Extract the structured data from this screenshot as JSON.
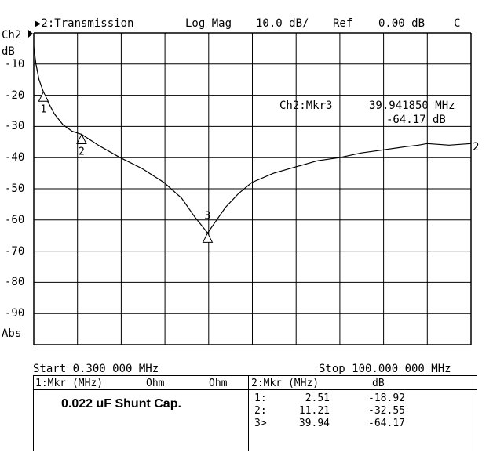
{
  "header": {
    "channel_indicator": "▶2:Transmission",
    "format": "Log Mag",
    "scale": "10.0 dB/",
    "ref_label": "Ref",
    "ref_value": "0.00 dB",
    "cal_flag": "C"
  },
  "axis": {
    "channel_label": "Ch2",
    "unit_label": "dB",
    "abs_label": "Abs",
    "trace_end_label": "2",
    "y_ticks": [
      "-10",
      "-20",
      "-30",
      "-40",
      "-50",
      "-60",
      "-70",
      "-80",
      "-90"
    ]
  },
  "active_marker": {
    "label": "Ch2:Mkr3",
    "freq": "39.941850 MHz",
    "value": "-64.17 dB"
  },
  "sweep": {
    "start": "Start 0.300 000 MHz",
    "stop": "Stop 100.000 000 MHz"
  },
  "bottom_table": {
    "left_header": {
      "col1": "1:Mkr (MHz)",
      "col2": "Ohm",
      "col3": "Ohm"
    },
    "caption": "0.022 uF Shunt Cap.",
    "right_header": {
      "col1": "2:Mkr (MHz)",
      "col2": "dB"
    },
    "rows": [
      {
        "id": "1:",
        "freq": "2.51",
        "value": "-18.92"
      },
      {
        "id": "2:",
        "freq": "11.21",
        "value": "-32.55"
      },
      {
        "id": "3>",
        "freq": "39.94",
        "value": "-64.17"
      }
    ]
  },
  "chart_data": {
    "type": "line",
    "xlim": [
      0.3,
      100
    ],
    "ylim": [
      -100,
      0
    ],
    "grid": true,
    "series": [
      {
        "x": [
          0.3,
          0.8,
          1.5,
          2.5,
          3.5,
          5,
          7,
          9,
          11.21,
          15,
          20,
          25,
          30,
          34,
          37,
          39.94,
          42,
          44,
          47,
          50,
          55,
          60,
          65,
          70,
          75,
          80,
          85,
          88,
          90,
          95,
          100
        ],
        "y": [
          -4.5,
          -10,
          -15,
          -18.92,
          -22,
          -26,
          -29.5,
          -31.5,
          -32.55,
          -36,
          -40,
          -43.5,
          -48,
          -53,
          -59,
          -64.17,
          -60,
          -56,
          -51.5,
          -48,
          -45,
          -43,
          -41,
          -40,
          -38.5,
          -37.5,
          -36.5,
          -36,
          -35.5,
          -36,
          -35.5
        ]
      }
    ],
    "markers": [
      {
        "label": "1",
        "x": 2.51,
        "y": -18.92
      },
      {
        "label": "2",
        "x": 11.21,
        "y": -32.55
      },
      {
        "label": "3",
        "x": 39.94,
        "y": -64.17
      }
    ]
  }
}
